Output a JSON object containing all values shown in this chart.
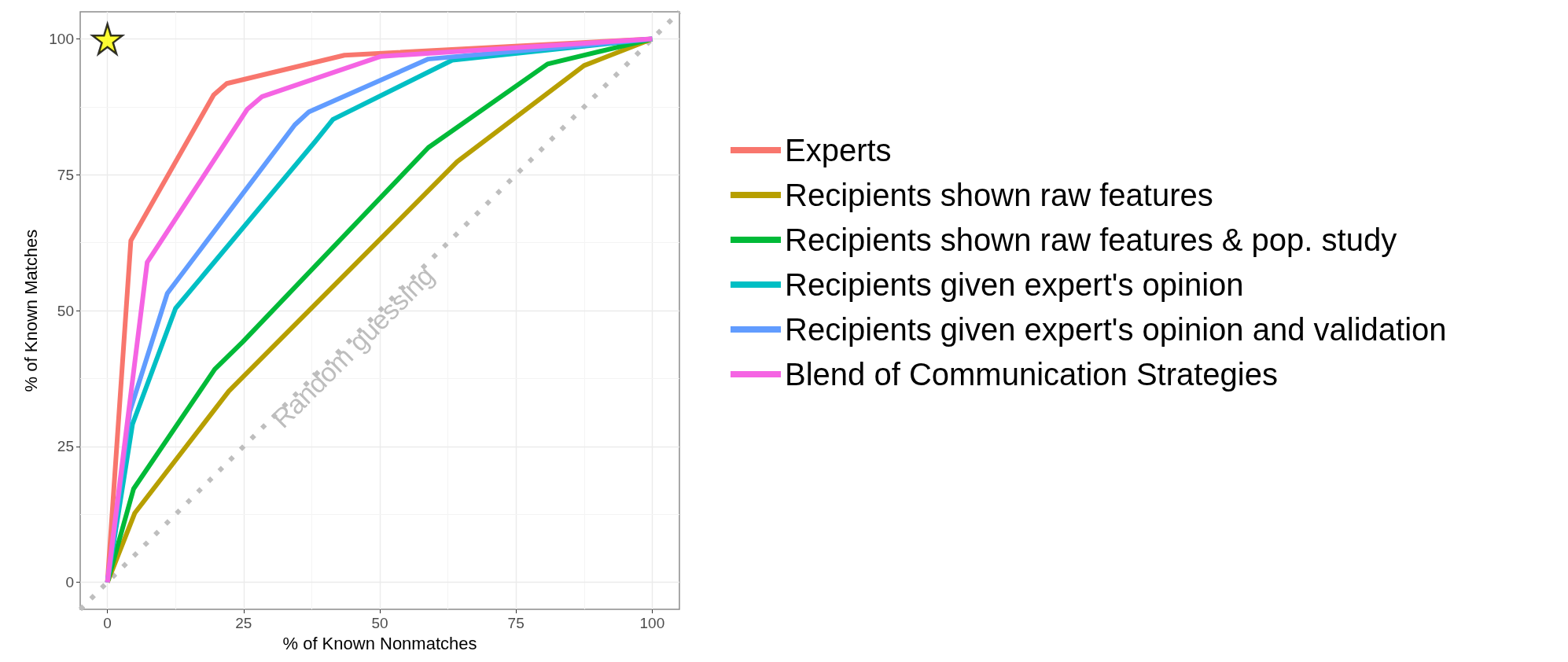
{
  "chart_data": {
    "type": "line",
    "xlabel": "% of Known Nonmatches",
    "ylabel": "% of Known Matches",
    "xlim": [
      -5,
      105
    ],
    "ylim": [
      -5,
      105
    ],
    "xticks": [
      0,
      25,
      50,
      75,
      100
    ],
    "yticks": [
      0,
      25,
      50,
      75,
      100
    ],
    "grid": true,
    "legend": "right",
    "marker": "none",
    "line_style": "solid",
    "annotations": [
      "Random guessing"
    ],
    "series": [
      {
        "name": "Experts",
        "color": "#f8766d",
        "x": [
          0,
          4.3,
          19.5,
          21.9,
          43.5,
          100
        ],
        "values": [
          0,
          62.9,
          89.7,
          91.8,
          97,
          100
        ]
      },
      {
        "name": "Recipients shown raw features",
        "color": "#b79f00",
        "x": [
          0,
          5,
          22.3,
          64.2,
          87.5,
          100
        ],
        "values": [
          0,
          12.7,
          35.2,
          77.4,
          95.1,
          100
        ]
      },
      {
        "name": "Recipients shown raw features & pop. study",
        "color": "#00ba38",
        "x": [
          0,
          4.8,
          19.7,
          24.8,
          58.9,
          80.8,
          100
        ],
        "values": [
          0,
          17.2,
          39.2,
          44.2,
          80,
          95.4,
          100
        ]
      },
      {
        "name": "Recipients given expert's opinion",
        "color": "#00bfc4",
        "x": [
          0,
          4.6,
          12.5,
          38.2,
          41.4,
          63.3,
          100
        ],
        "values": [
          0,
          29.1,
          50.4,
          81.2,
          85.2,
          96.1,
          100
        ]
      },
      {
        "name": "Recipients given expert's opinion and validation",
        "color": "#619cff",
        "x": [
          0,
          4.1,
          11,
          34.4,
          37,
          58.9,
          100
        ],
        "values": [
          0,
          31.4,
          53.2,
          84.2,
          86.6,
          96.3,
          100
        ]
      },
      {
        "name": "Blend of Communication Strategies",
        "color": "#f564e3",
        "x": [
          0,
          7.3,
          25.7,
          28.4,
          50.2,
          100
        ],
        "values": [
          0,
          58.9,
          87.1,
          89.4,
          96.8,
          100
        ]
      },
      {
        "type": "line",
        "color": "#bebebe",
        "line_style": "dotted",
        "x": [
          -5,
          105
        ],
        "values": [
          -5,
          105
        ]
      },
      {
        "type": "scatter",
        "marker": "star",
        "color": "#ffff00",
        "x": [
          0
        ],
        "values": [
          100
        ]
      }
    ]
  }
}
